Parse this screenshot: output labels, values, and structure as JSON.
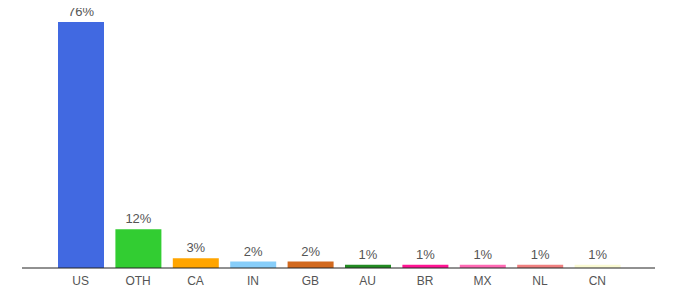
{
  "chart_data": {
    "type": "bar",
    "categories": [
      "US",
      "OTH",
      "CA",
      "IN",
      "GB",
      "AU",
      "BR",
      "MX",
      "NL",
      "CN"
    ],
    "values": [
      76,
      12,
      3,
      2,
      2,
      1,
      1,
      1,
      1,
      1
    ],
    "value_labels": [
      "76%",
      "12%",
      "3%",
      "2%",
      "2%",
      "1%",
      "1%",
      "1%",
      "1%",
      "1%"
    ],
    "colors": [
      "#4169e1",
      "#32cd32",
      "#ffa500",
      "#87cefa",
      "#d2691e",
      "#228b22",
      "#ff1493",
      "#ff69b4",
      "#f08080",
      "#fafad2"
    ],
    "ylim": [
      0,
      76
    ],
    "tick_labels": "x",
    "data_labels": true,
    "grid": false
  }
}
